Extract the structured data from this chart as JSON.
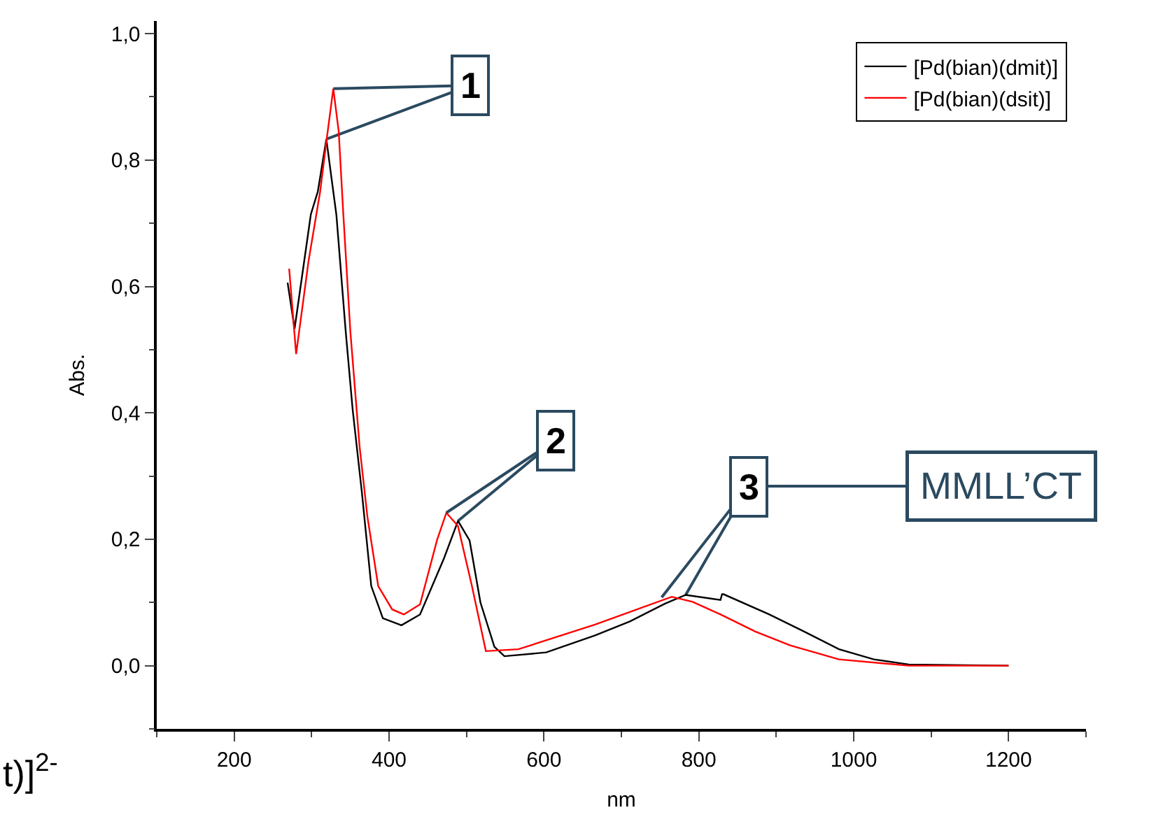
{
  "chart_data": {
    "type": "line",
    "xlabel": "nm",
    "ylabel": "Abs.",
    "xlim": [
      100,
      1300
    ],
    "xticks": [
      200,
      400,
      600,
      800,
      1000,
      1200
    ],
    "ylim": [
      -0.1,
      1.02
    ],
    "yticks": [
      {
        "value": 0,
        "label": "0,0"
      },
      {
        "value": 0.2,
        "label": "0,2"
      },
      {
        "value": 0.4,
        "label": "0,4"
      },
      {
        "value": 0.6,
        "label": "0,6"
      },
      {
        "value": 0.8,
        "label": "0,8"
      },
      {
        "value": 1.0,
        "label": "1,0"
      }
    ],
    "grid": false,
    "legend": "top right",
    "marker": "none",
    "line_style": "solid",
    "series": [
      {
        "name": "[Pd(bian)(dmit)]",
        "color": "#000000",
        "x": [
          269,
          278,
          299,
          308,
          319,
          332,
          344,
          353,
          365,
          377,
          392,
          416,
          440,
          471,
          489,
          504,
          518,
          536,
          549,
          603,
          666,
          711,
          756,
          783,
          828,
          830,
          832,
          891,
          936,
          981,
          1026,
          1071,
          1200
        ],
        "values": [
          0.606,
          0.533,
          0.714,
          0.75,
          0.833,
          0.713,
          0.529,
          0.405,
          0.273,
          0.126,
          0.075,
          0.064,
          0.081,
          0.17,
          0.229,
          0.198,
          0.1,
          0.03,
          0.015,
          0.021,
          0.048,
          0.07,
          0.098,
          0.112,
          0.104,
          0.113,
          0.113,
          0.081,
          0.054,
          0.026,
          0.01,
          0.002,
          0.0
        ]
      },
      {
        "name": "[Pd(bian)(dsit)]",
        "color": "#ff0000",
        "x": [
          271,
          280,
          296,
          311,
          320,
          328,
          335,
          341,
          350,
          362,
          372,
          386,
          404,
          419,
          440,
          462,
          474,
          489,
          507,
          525,
          567,
          666,
          765,
          792,
          828,
          873,
          918,
          981,
          1071,
          1200
        ],
        "values": [
          0.628,
          0.493,
          0.64,
          0.75,
          0.838,
          0.913,
          0.845,
          0.713,
          0.529,
          0.346,
          0.236,
          0.126,
          0.089,
          0.081,
          0.097,
          0.199,
          0.242,
          0.221,
          0.126,
          0.023,
          0.026,
          0.065,
          0.109,
          0.101,
          0.081,
          0.054,
          0.032,
          0.01,
          0.0,
          0.0
        ]
      }
    ],
    "annotations": [
      {
        "text": "1",
        "x": 328,
        "y": 0.913
      },
      {
        "text": "2",
        "x": 474,
        "y": 0.242
      },
      {
        "text": "3",
        "x": 752,
        "y": 0.108
      },
      "MMLL’CT",
      "t)]$^{2-}$"
    ]
  }
}
